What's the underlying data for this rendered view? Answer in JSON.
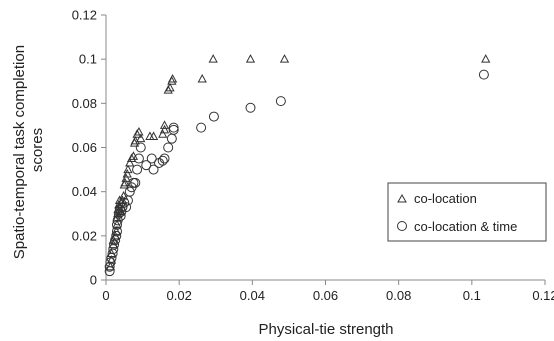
{
  "chart_data": {
    "type": "scatter",
    "xlabel": "Physical-tie strength",
    "ylabel_lines": [
      "Spatio-temporal task completion",
      "scores"
    ],
    "xlim": [
      0,
      0.12
    ],
    "ylim": [
      0,
      0.12
    ],
    "x_ticks": [
      "0",
      "0.02",
      "0.04",
      "0.06",
      "0.08",
      "0.1",
      "0.12"
    ],
    "y_ticks": [
      "0",
      "0.02",
      "0.04",
      "0.06",
      "0.08",
      "0.1",
      "0.12"
    ],
    "grid": false,
    "legend_position": "right",
    "series": [
      {
        "name": "co-location",
        "marker": "triangle",
        "points": [
          [
            0.0012,
            0.006
          ],
          [
            0.0015,
            0.009
          ],
          [
            0.0015,
            0.012
          ],
          [
            0.002,
            0.016
          ],
          [
            0.002,
            0.018
          ],
          [
            0.0025,
            0.02
          ],
          [
            0.0028,
            0.022
          ],
          [
            0.003,
            0.025
          ],
          [
            0.003,
            0.028
          ],
          [
            0.0032,
            0.03
          ],
          [
            0.0033,
            0.032
          ],
          [
            0.0035,
            0.034
          ],
          [
            0.0037,
            0.036
          ],
          [
            0.004,
            0.031
          ],
          [
            0.0042,
            0.035
          ],
          [
            0.0045,
            0.036
          ],
          [
            0.0048,
            0.038
          ],
          [
            0.005,
            0.043
          ],
          [
            0.0052,
            0.044
          ],
          [
            0.0055,
            0.046
          ],
          [
            0.0058,
            0.048
          ],
          [
            0.006,
            0.05
          ],
          [
            0.0065,
            0.053
          ],
          [
            0.007,
            0.055
          ],
          [
            0.0075,
            0.056
          ],
          [
            0.0078,
            0.062
          ],
          [
            0.008,
            0.063
          ],
          [
            0.0085,
            0.066
          ],
          [
            0.009,
            0.067
          ],
          [
            0.0095,
            0.064
          ],
          [
            0.012,
            0.065
          ],
          [
            0.013,
            0.065
          ],
          [
            0.0155,
            0.066
          ],
          [
            0.016,
            0.07
          ],
          [
            0.016,
            0.068
          ],
          [
            0.017,
            0.086
          ],
          [
            0.0175,
            0.087
          ],
          [
            0.018,
            0.09
          ],
          [
            0.0182,
            0.091
          ],
          [
            0.0263,
            0.091
          ],
          [
            0.0293,
            0.1
          ],
          [
            0.0395,
            0.1
          ],
          [
            0.0488,
            0.1
          ],
          [
            0.1038,
            0.1
          ]
        ]
      },
      {
        "name": "co-location & time",
        "marker": "circle",
        "points": [
          [
            0.001,
            0.004
          ],
          [
            0.001,
            0.006
          ],
          [
            0.0012,
            0.008
          ],
          [
            0.0015,
            0.01
          ],
          [
            0.0018,
            0.012
          ],
          [
            0.002,
            0.014
          ],
          [
            0.0022,
            0.016
          ],
          [
            0.0025,
            0.018
          ],
          [
            0.0028,
            0.02
          ],
          [
            0.003,
            0.022
          ],
          [
            0.003,
            0.025
          ],
          [
            0.0032,
            0.027
          ],
          [
            0.0035,
            0.03
          ],
          [
            0.0038,
            0.032
          ],
          [
            0.004,
            0.029
          ],
          [
            0.0042,
            0.031
          ],
          [
            0.0045,
            0.033
          ],
          [
            0.005,
            0.035
          ],
          [
            0.0055,
            0.033
          ],
          [
            0.006,
            0.036
          ],
          [
            0.0065,
            0.04
          ],
          [
            0.007,
            0.042
          ],
          [
            0.0075,
            0.044
          ],
          [
            0.008,
            0.044
          ],
          [
            0.0085,
            0.05
          ],
          [
            0.009,
            0.055
          ],
          [
            0.0095,
            0.06
          ],
          [
            0.011,
            0.052
          ],
          [
            0.0125,
            0.055
          ],
          [
            0.013,
            0.05
          ],
          [
            0.0145,
            0.053
          ],
          [
            0.0155,
            0.054
          ],
          [
            0.016,
            0.055
          ],
          [
            0.017,
            0.06
          ],
          [
            0.018,
            0.064
          ],
          [
            0.0185,
            0.068
          ],
          [
            0.0185,
            0.069
          ],
          [
            0.026,
            0.069
          ],
          [
            0.0295,
            0.074
          ],
          [
            0.0395,
            0.078
          ],
          [
            0.0478,
            0.081
          ],
          [
            0.1033,
            0.093
          ]
        ]
      }
    ]
  }
}
